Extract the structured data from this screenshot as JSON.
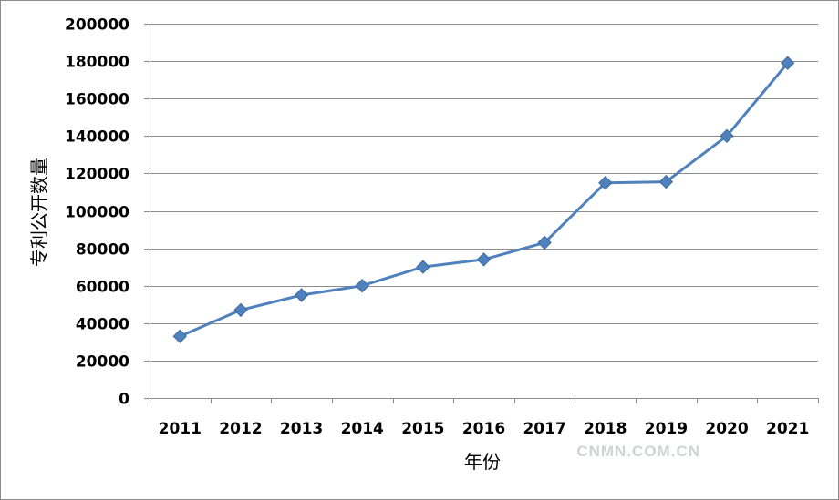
{
  "chart_data": {
    "type": "line",
    "title": "",
    "xlabel": "年份",
    "ylabel": "专利公开数量",
    "categories": [
      "2011",
      "2012",
      "2013",
      "2014",
      "2015",
      "2016",
      "2017",
      "2018",
      "2019",
      "2020",
      "2021"
    ],
    "series": [
      {
        "values": [
          33000,
          47000,
          55000,
          60000,
          70000,
          74000,
          83000,
          115000,
          115500,
          140000,
          179000
        ],
        "color": "#4f81bd",
        "marker": "diamond"
      }
    ],
    "ylim": [
      0,
      200000
    ],
    "yticks": [
      0,
      20000,
      40000,
      60000,
      80000,
      100000,
      120000,
      140000,
      160000,
      180000,
      200000
    ],
    "grid": true,
    "legend": "none"
  },
  "watermark": "CNMN.COM.CN",
  "colors": {
    "line": "#4f81bd",
    "marker": "#4f81bd",
    "grid": "#8c8c8c",
    "axis": "#8c8c8c",
    "frame": "#8c8c8c",
    "watermark": "#cfd3d6"
  }
}
